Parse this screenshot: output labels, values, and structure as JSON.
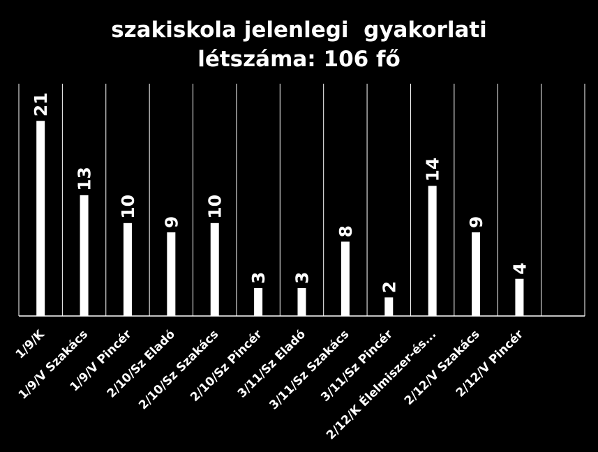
{
  "chart_data": {
    "type": "bar",
    "title_lines": [
      "szakiskola jelenlegi  gyakorlati",
      "létszáma: 106 fő"
    ],
    "categories": [
      "1/9/K",
      "1/9/V Szakács",
      "1/9/V Pincér",
      "2/10/Sz Eladó",
      "2/10/Sz Szakács",
      "2/10/Sz Pincér",
      "3/11/Sz Eladó",
      "3/11/Sz Szakács",
      "3/11/Sz Pincér",
      "2/12/K Élelmiszer-és...",
      "2/12/V Szakács",
      "2/12/V Pincér",
      ""
    ],
    "values": [
      21,
      13,
      10,
      9,
      10,
      3,
      3,
      8,
      2,
      14,
      9,
      4,
      null
    ],
    "data_labels": [
      "21",
      "13",
      "10",
      "9",
      "10",
      "3",
      "3",
      "8",
      "2",
      "14",
      "9",
      "4",
      ""
    ],
    "ylim": [
      0,
      25
    ],
    "grid": "vertical",
    "legend": "none",
    "colors": {
      "background": "#000000",
      "bar": "#ffffff",
      "grid": "#ffffff",
      "text": "#ffffff"
    }
  }
}
